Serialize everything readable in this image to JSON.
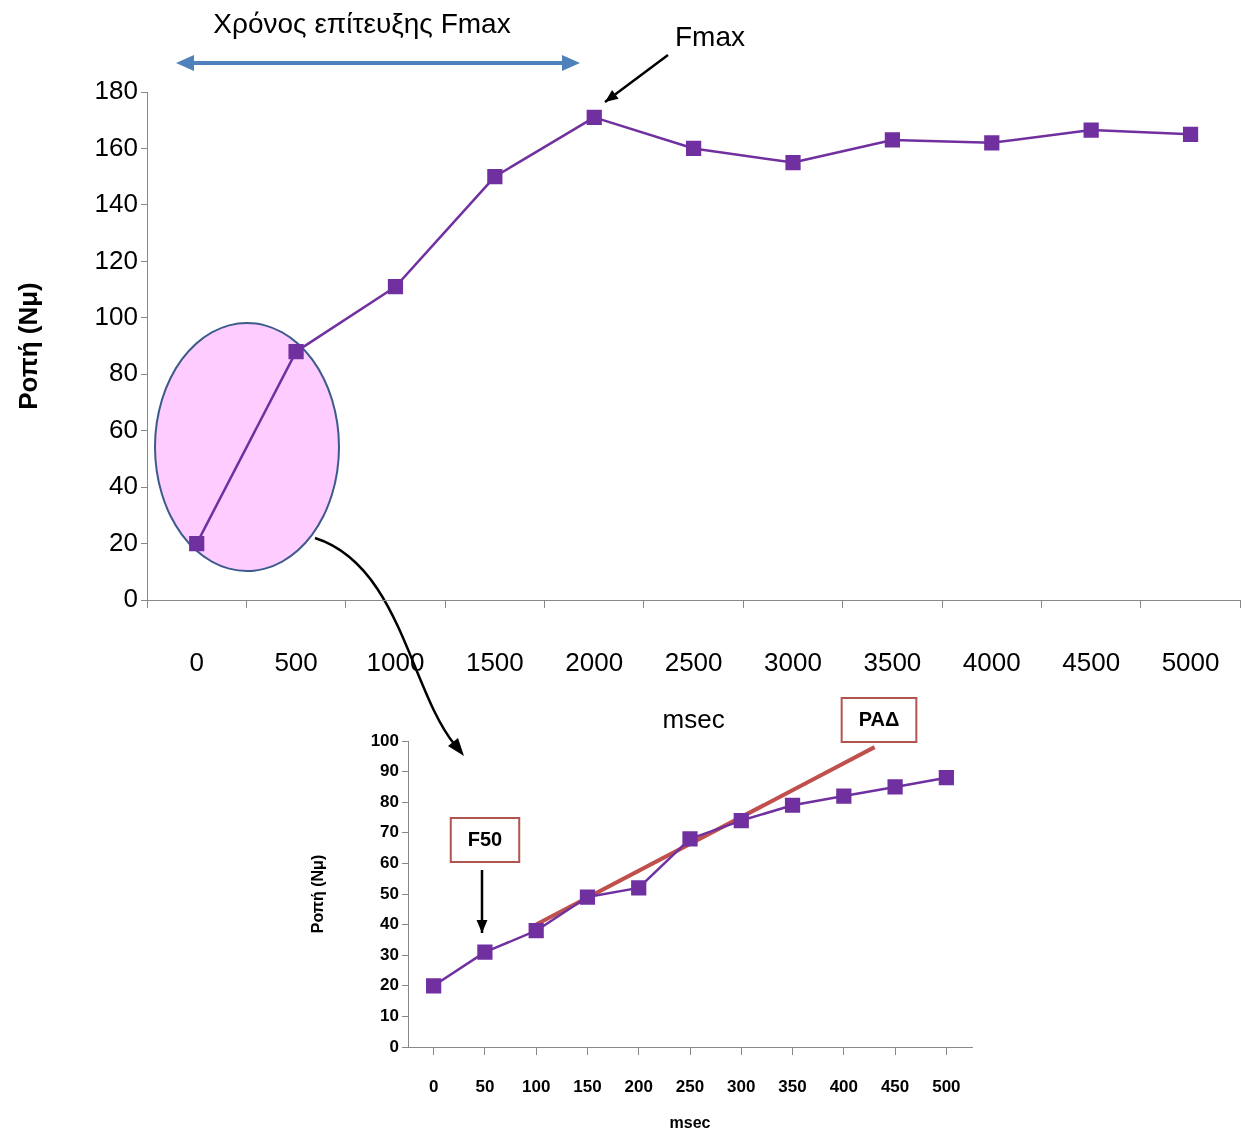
{
  "chart_data": [
    {
      "type": "line",
      "categories": [
        "0",
        "500",
        "1000",
        "1500",
        "2000",
        "2500",
        "3000",
        "3500",
        "4000",
        "4500",
        "5000"
      ],
      "values": [
        20,
        88,
        111,
        150,
        171,
        160,
        155,
        163,
        162,
        166.5,
        165
      ],
      "color": "#7030a0",
      "marker": "square",
      "ylim": [
        0,
        180
      ],
      "yticks": [
        0,
        20,
        40,
        60,
        80,
        100,
        120,
        140,
        160,
        180
      ],
      "grid": false,
      "xlabel": "msec",
      "ylabel": "Ροπή (Nμ)",
      "annotations": [
        "Χρόνος επίτευξης Fmax",
        "Fmax"
      ]
    },
    {
      "type": "line",
      "x": [
        0,
        50,
        100,
        150,
        200,
        250,
        300,
        350,
        400,
        450,
        500
      ],
      "xlim": [
        -25,
        525
      ],
      "xticks": [
        0,
        50,
        100,
        150,
        200,
        250,
        300,
        350,
        400,
        450,
        500
      ],
      "ylim": [
        0,
        100
      ],
      "yticks": [
        0,
        10,
        20,
        30,
        40,
        50,
        60,
        70,
        80,
        90,
        100
      ],
      "grid": false,
      "marker": "square",
      "xlabel": "msec",
      "ylabel": "Ροπή (Nμ)",
      "series": [
        {
          "color": "#7030a0",
          "values": [
            20,
            31,
            38,
            49,
            52,
            68,
            74,
            79,
            82,
            85,
            88
          ]
        },
        {
          "type": "line",
          "x": [
            100,
            430
          ],
          "values": [
            40,
            98
          ],
          "color": "#c0504d",
          "marker": "none"
        }
      ],
      "annotations": [
        "F50",
        "ΡΑΔ"
      ]
    }
  ]
}
